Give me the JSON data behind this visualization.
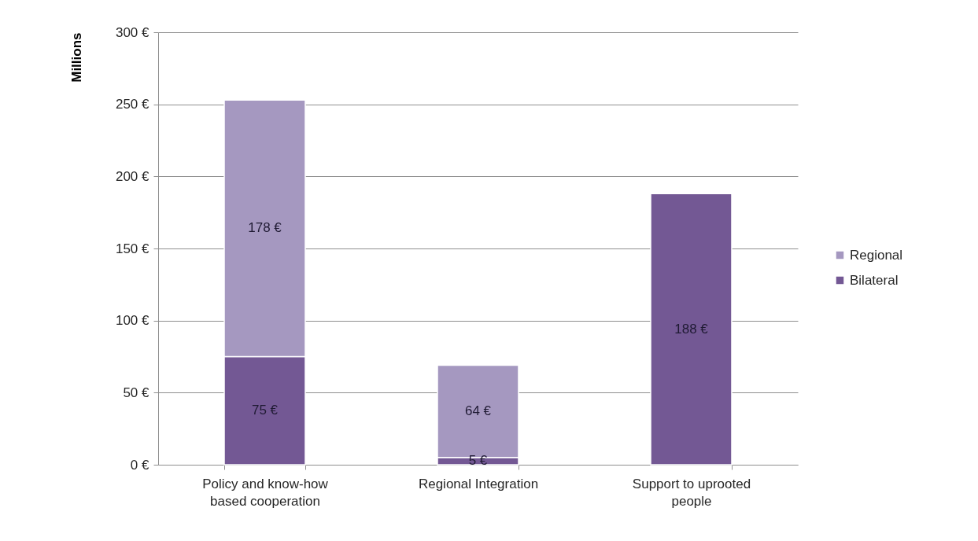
{
  "chart_data": {
    "type": "bar",
    "stacked": true,
    "ylabel": "Millions",
    "categories": [
      "Policy and know-how based cooperation",
      "Regional Integration",
      "Support to uprooted people"
    ],
    "series": [
      {
        "name": "Bilateral",
        "color": "#735894",
        "values": [
          75,
          5,
          188
        ],
        "value_labels": [
          "75 €",
          "5 €",
          "188 €"
        ]
      },
      {
        "name": "Regional",
        "color": "#a598c0",
        "values": [
          178,
          64,
          null
        ],
        "value_labels": [
          "178 €",
          "64 €",
          null
        ]
      }
    ],
    "ylim": [
      0,
      300
    ],
    "yticks": [
      {
        "value": 0,
        "label": "0 €"
      },
      {
        "value": 50,
        "label": "50 €"
      },
      {
        "value": 100,
        "label": "100 €"
      },
      {
        "value": 150,
        "label": "150 €"
      },
      {
        "value": 200,
        "label": "200 €"
      },
      {
        "value": 250,
        "label": "250 €"
      },
      {
        "value": 300,
        "label": "300 €"
      }
    ],
    "grid": "y",
    "legend": "right"
  }
}
